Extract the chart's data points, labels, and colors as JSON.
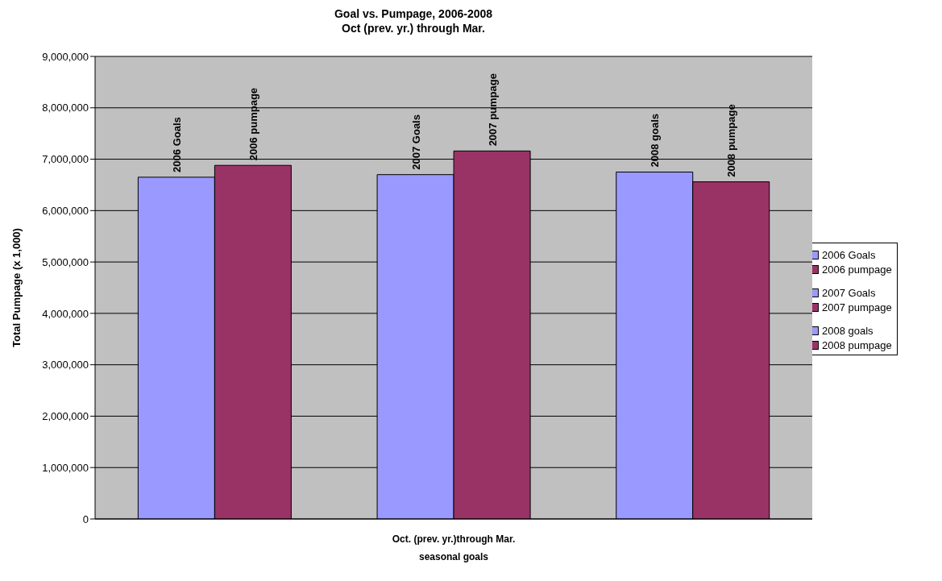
{
  "chart_data": {
    "type": "bar",
    "title": "Goal vs. Pumpage, 2006-2008\nOct (prev. yr.) through Mar.",
    "xlabel": "seasonal goals",
    "ylabel": "Total Pumpage (x 1,000)",
    "categories": [
      null,
      "Oct. (prev. yr.)through Mar.",
      null
    ],
    "series": [
      {
        "name": "2006 Goals",
        "color": "#9999ff",
        "values": [
          6650000,
          null,
          null
        ]
      },
      {
        "name": "2006 pumpage",
        "color": "#993366",
        "values": [
          6880000,
          null,
          null
        ]
      },
      {
        "name": "2007 Goals",
        "color": "#9999ff",
        "values": [
          null,
          6700000,
          null
        ]
      },
      {
        "name": "2007 pumpage",
        "color": "#993366",
        "values": [
          null,
          7160000,
          null
        ]
      },
      {
        "name": "2008 goals",
        "color": "#9999ff",
        "values": [
          null,
          null,
          6750000
        ]
      },
      {
        "name": "2008 pumpage",
        "color": "#993366",
        "values": [
          null,
          null,
          6560000
        ]
      }
    ],
    "ylim": [
      0,
      9000000
    ],
    "yticks": [
      0,
      {
        "value": 1000000,
        "label": "1,000,000"
      },
      {
        "value": 2000000,
        "label": "2,000,000"
      },
      {
        "value": 3000000,
        "label": "3,000,000"
      },
      {
        "value": 4000000,
        "label": "4,000,000"
      },
      {
        "value": 5000000,
        "label": "5,000,000"
      },
      {
        "value": 6000000,
        "label": "6,000,000"
      },
      {
        "value": 7000000,
        "label": "7,000,000"
      },
      {
        "value": 8000000,
        "label": "8,000,000"
      },
      {
        "value": 9000000,
        "label": "9,000,000"
      }
    ],
    "grid": "y",
    "legend": "right"
  }
}
